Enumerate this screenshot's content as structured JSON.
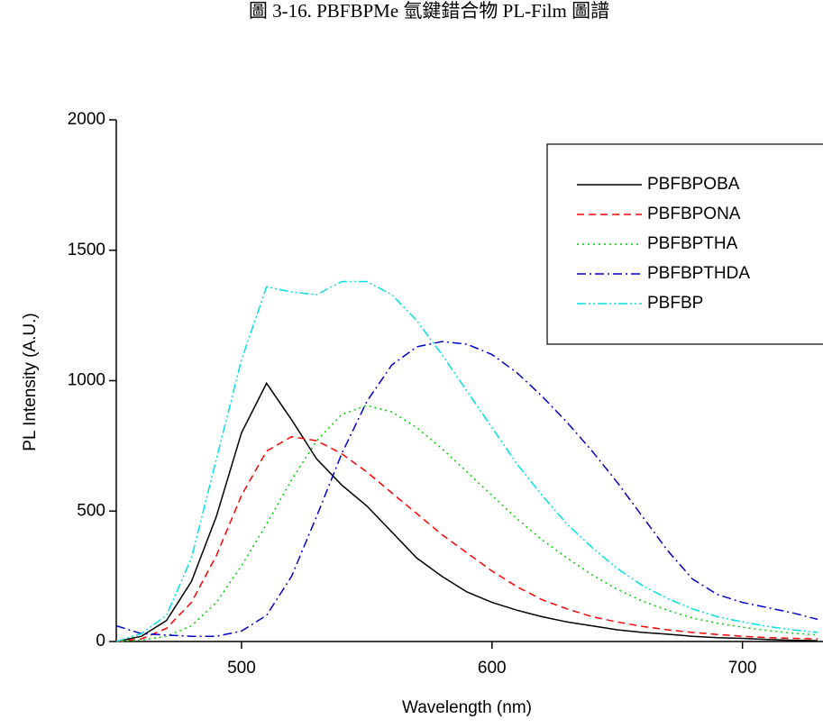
{
  "chart_data": {
    "type": "line",
    "title": "圖 3-16. PBFBPMe 氫鍵錯合物 PL-Film 圖譜",
    "x_label": "Wavelength (nm)",
    "y_label": "PL Intensity (A.U.)",
    "x": [
      450,
      460,
      470,
      480,
      490,
      500,
      510,
      520,
      530,
      540,
      550,
      560,
      570,
      580,
      590,
      600,
      610,
      620,
      630,
      640,
      650,
      660,
      670,
      680,
      690,
      700,
      710,
      720,
      730
    ],
    "series": [
      {
        "name": "PBFBPOBA",
        "color": "#000000",
        "dash": "solid",
        "values": [
          0,
          20,
          80,
          230,
          480,
          800,
          990,
          850,
          700,
          600,
          520,
          420,
          320,
          250,
          190,
          150,
          120,
          95,
          75,
          60,
          45,
          35,
          28,
          20,
          15,
          12,
          8,
          5,
          3
        ]
      },
      {
        "name": "PBFBPONA",
        "color": "#ff0000",
        "dash": "dash",
        "values": [
          0,
          10,
          50,
          150,
          330,
          560,
          730,
          785,
          770,
          720,
          650,
          570,
          490,
          410,
          340,
          270,
          210,
          160,
          125,
          95,
          75,
          58,
          45,
          35,
          27,
          20,
          15,
          12,
          10
        ]
      },
      {
        "name": "PBFBPTHA",
        "color": "#00cc00",
        "dash": "dot",
        "values": [
          0,
          5,
          20,
          60,
          150,
          290,
          450,
          620,
          770,
          870,
          905,
          880,
          820,
          740,
          650,
          560,
          470,
          390,
          320,
          255,
          200,
          155,
          120,
          90,
          70,
          55,
          42,
          32,
          25
        ]
      },
      {
        "name": "PBFBPTHDA",
        "color": "#0000cc",
        "dash": "dashdot",
        "values": [
          60,
          30,
          25,
          20,
          20,
          40,
          100,
          250,
          480,
          720,
          920,
          1060,
          1130,
          1150,
          1140,
          1100,
          1030,
          940,
          840,
          730,
          610,
          480,
          350,
          240,
          180,
          150,
          130,
          110,
          85
        ]
      },
      {
        "name": "PBFBP",
        "color": "#00e0e0",
        "dash": "dashdotdot",
        "values": [
          0,
          30,
          100,
          320,
          700,
          1080,
          1360,
          1340,
          1330,
          1380,
          1380,
          1330,
          1230,
          1100,
          960,
          820,
          680,
          560,
          450,
          360,
          280,
          215,
          165,
          125,
          95,
          75,
          58,
          45,
          35
        ]
      }
    ],
    "xlim": [
      450,
      730
    ],
    "ylim": [
      0,
      2000
    ],
    "xticks": [
      500,
      600,
      700
    ],
    "yticks": [
      0,
      500,
      1000,
      1500,
      2000
    ],
    "legend": "upper-right"
  }
}
